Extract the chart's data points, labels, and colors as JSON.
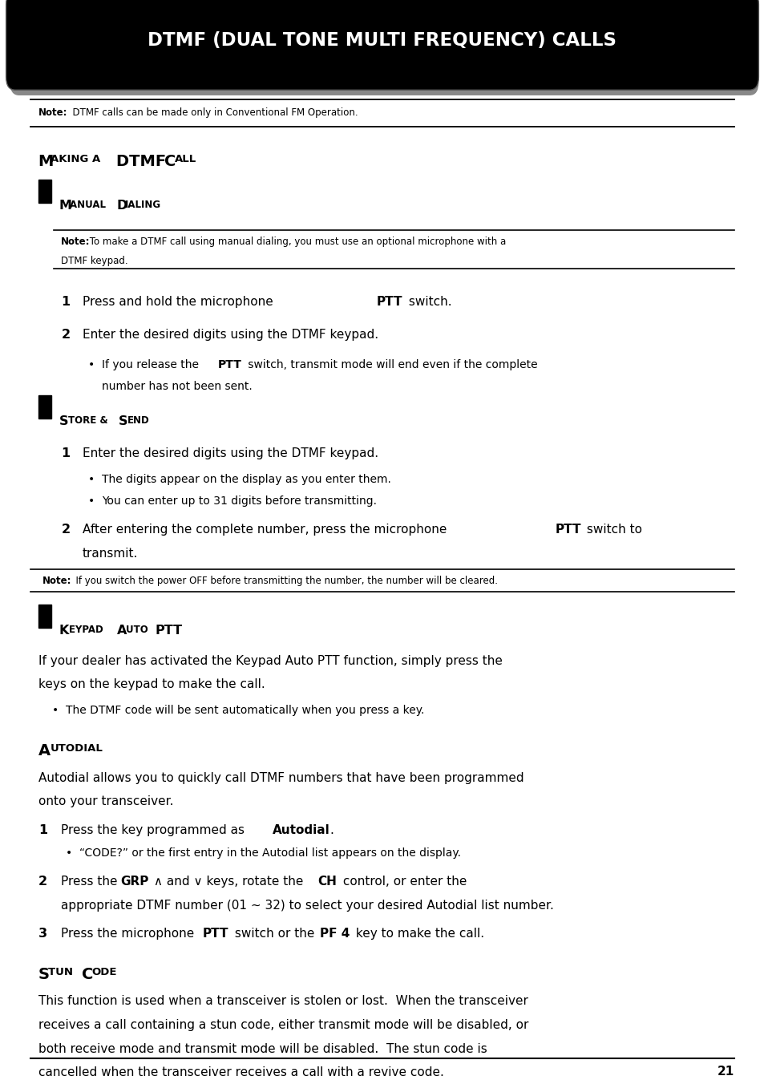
{
  "title": "DTMF (DUAL TONE MULTI FREQUENCY) CALLS",
  "bg_color": "#ffffff",
  "header_bg": "#000000",
  "header_text_color": "#ffffff",
  "body_text_color": "#000000",
  "note_text_top": "Note:  DTMF calls can be made only in Conventional FM Operation.",
  "page_number": "21"
}
